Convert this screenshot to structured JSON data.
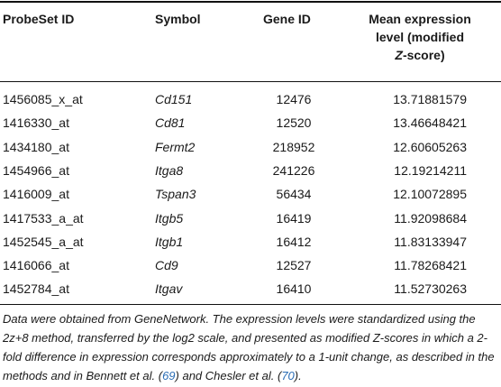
{
  "table": {
    "headers": {
      "probeset": "ProbeSet ID",
      "symbol": "Symbol",
      "gene_id": "Gene ID",
      "mean_line1": "Mean expression",
      "mean_line2": "level (modified",
      "mean_line3_italic": "Z",
      "mean_line3_rest": "-score)"
    },
    "rows": [
      {
        "probeset": "1456085_x_at",
        "symbol": "Cd151",
        "gene_id": "12476",
        "mean": "13.71881579"
      },
      {
        "probeset": "1416330_at",
        "symbol": "Cd81",
        "gene_id": "12520",
        "mean": "13.46648421"
      },
      {
        "probeset": "1434180_at",
        "symbol": "Fermt2",
        "gene_id": "218952",
        "mean": "12.60605263"
      },
      {
        "probeset": "1454966_at",
        "symbol": "Itga8",
        "gene_id": "241226",
        "mean": "12.19214211"
      },
      {
        "probeset": "1416009_at",
        "symbol": "Tspan3",
        "gene_id": "56434",
        "mean": "12.10072895"
      },
      {
        "probeset": "1417533_a_at",
        "symbol": "Itgb5",
        "gene_id": "16419",
        "mean": "11.92098684"
      },
      {
        "probeset": "1452545_a_at",
        "symbol": "Itgb1",
        "gene_id": "16412",
        "mean": "11.83133947"
      },
      {
        "probeset": "1416066_at",
        "symbol": "Cd9",
        "gene_id": "12527",
        "mean": "11.78268421"
      },
      {
        "probeset": "1452784_at",
        "symbol": "Itgav",
        "gene_id": "16410",
        "mean": "11.52730263"
      }
    ]
  },
  "caption": {
    "part1": "Data were obtained from GeneNetwork. The expression levels were standardized using the 2z+8 method, transferred by the log2 scale, and presented as modified Z-scores in which a 2-fold difference in expression corresponds approximately to a 1-unit change, as described in the methods and in Bennett et al. (",
    "ref1": "69",
    "part2": ") and Chesler et al. (",
    "ref2": "70",
    "part3": ")."
  },
  "colors": {
    "text": "#1a1a1a",
    "rule": "#111111",
    "reference_link": "#2a6db5"
  }
}
